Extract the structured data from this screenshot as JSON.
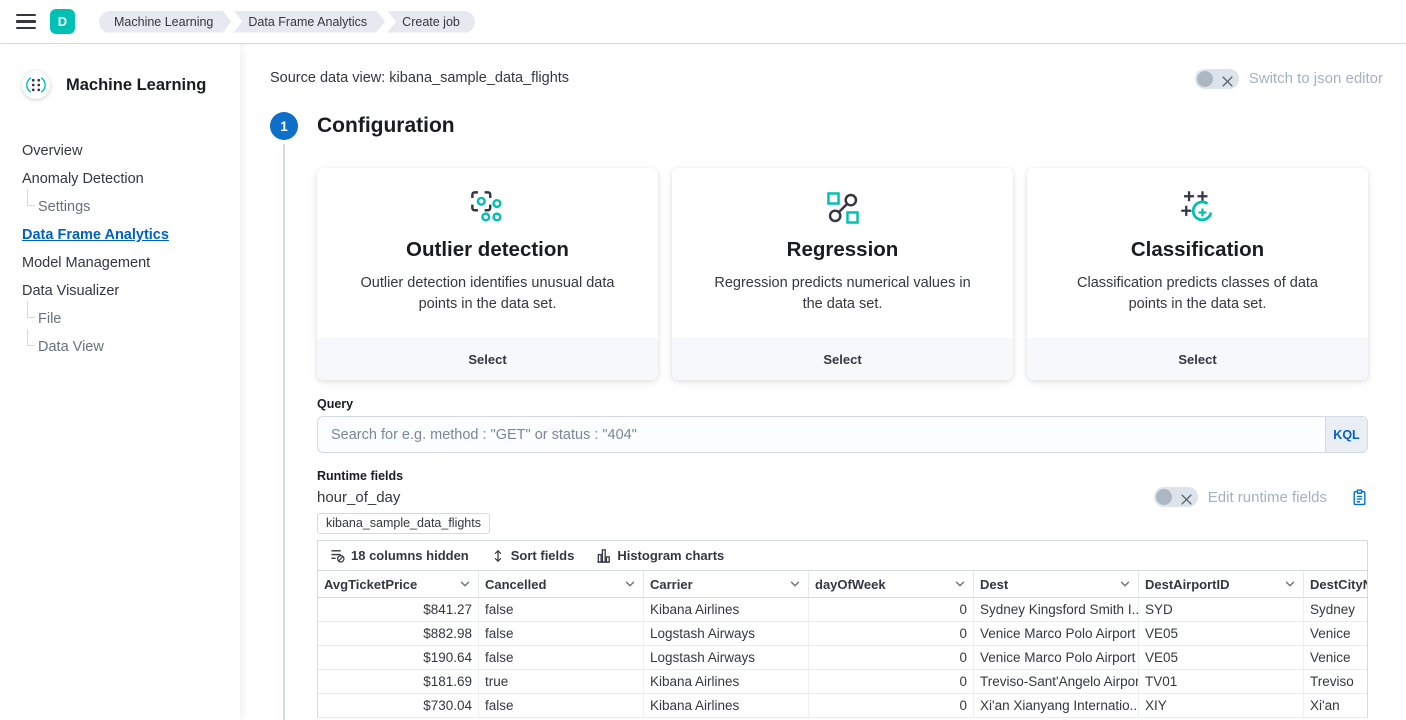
{
  "topbar": {
    "deployment_initial": "D",
    "breadcrumbs": [
      "Machine Learning",
      "Data Frame Analytics",
      "Create job"
    ]
  },
  "sidebar": {
    "title": "Machine Learning",
    "items": [
      {
        "label": "Overview",
        "type": "top"
      },
      {
        "label": "Anomaly Detection",
        "type": "top"
      },
      {
        "label": "Settings",
        "type": "sub"
      },
      {
        "label": "Data Frame Analytics",
        "type": "top",
        "active": true
      },
      {
        "label": "Model Management",
        "type": "top"
      },
      {
        "label": "Data Visualizer",
        "type": "top"
      },
      {
        "label": "File",
        "type": "sub"
      },
      {
        "label": "Data View",
        "type": "sub"
      }
    ]
  },
  "header": {
    "source_label": "Source data view: kibana_sample_data_flights",
    "json_toggle_label": "Switch to json editor"
  },
  "step": {
    "number": "1",
    "title": "Configuration"
  },
  "cards": [
    {
      "icon": "outlier-detection",
      "title": "Outlier detection",
      "description": "Outlier detection identifies unusual data points in the data set.",
      "action": "Select"
    },
    {
      "icon": "regression",
      "title": "Regression",
      "description": "Regression predicts numerical values in the data set.",
      "action": "Select"
    },
    {
      "icon": "classification",
      "title": "Classification",
      "description": "Classification predicts classes of data points in the data set.",
      "action": "Select"
    }
  ],
  "query": {
    "label": "Query",
    "placeholder": "Search for e.g. method : \"GET\" or status : \"404\"",
    "lang_button": "KQL"
  },
  "runtime_fields": {
    "label": "Runtime fields",
    "value": "hour_of_day",
    "toggle_label": "Edit runtime fields"
  },
  "data_view_badge": "kibana_sample_data_flights",
  "grid": {
    "toolbar": [
      {
        "label": "18 columns hidden",
        "icon": "columns-hidden-icon"
      },
      {
        "label": "Sort fields",
        "icon": "sort-fields-icon"
      },
      {
        "label": "Histogram charts",
        "icon": "histogram-charts-icon"
      }
    ],
    "columns": [
      "AvgTicketPrice",
      "Cancelled",
      "Carrier",
      "dayOfWeek",
      "Dest",
      "DestAirportID",
      "DestCityName"
    ],
    "rows": [
      [
        "$841.27",
        "false",
        "Kibana Airlines",
        "0",
        "Sydney Kingsford Smith I...",
        "SYD",
        "Sydney"
      ],
      [
        "$882.98",
        "false",
        "Logstash Airways",
        "0",
        "Venice Marco Polo Airport",
        "VE05",
        "Venice"
      ],
      [
        "$190.64",
        "false",
        "Logstash Airways",
        "0",
        "Venice Marco Polo Airport",
        "VE05",
        "Venice"
      ],
      [
        "$181.69",
        "true",
        "Kibana Airlines",
        "0",
        "Treviso-Sant'Angelo Airport",
        "TV01",
        "Treviso"
      ],
      [
        "$730.04",
        "false",
        "Kibana Airlines",
        "0",
        "Xi'an Xianyang Internatio...",
        "XIY",
        "Xi'an"
      ]
    ]
  },
  "colors": {
    "accent_teal": "#00bfb3",
    "primary_blue": "#0061c4",
    "step_blue": "#0e6fc8",
    "text_dark": "#343741",
    "text_disabled": "#a6b0bf",
    "border": "#d3dae6"
  }
}
